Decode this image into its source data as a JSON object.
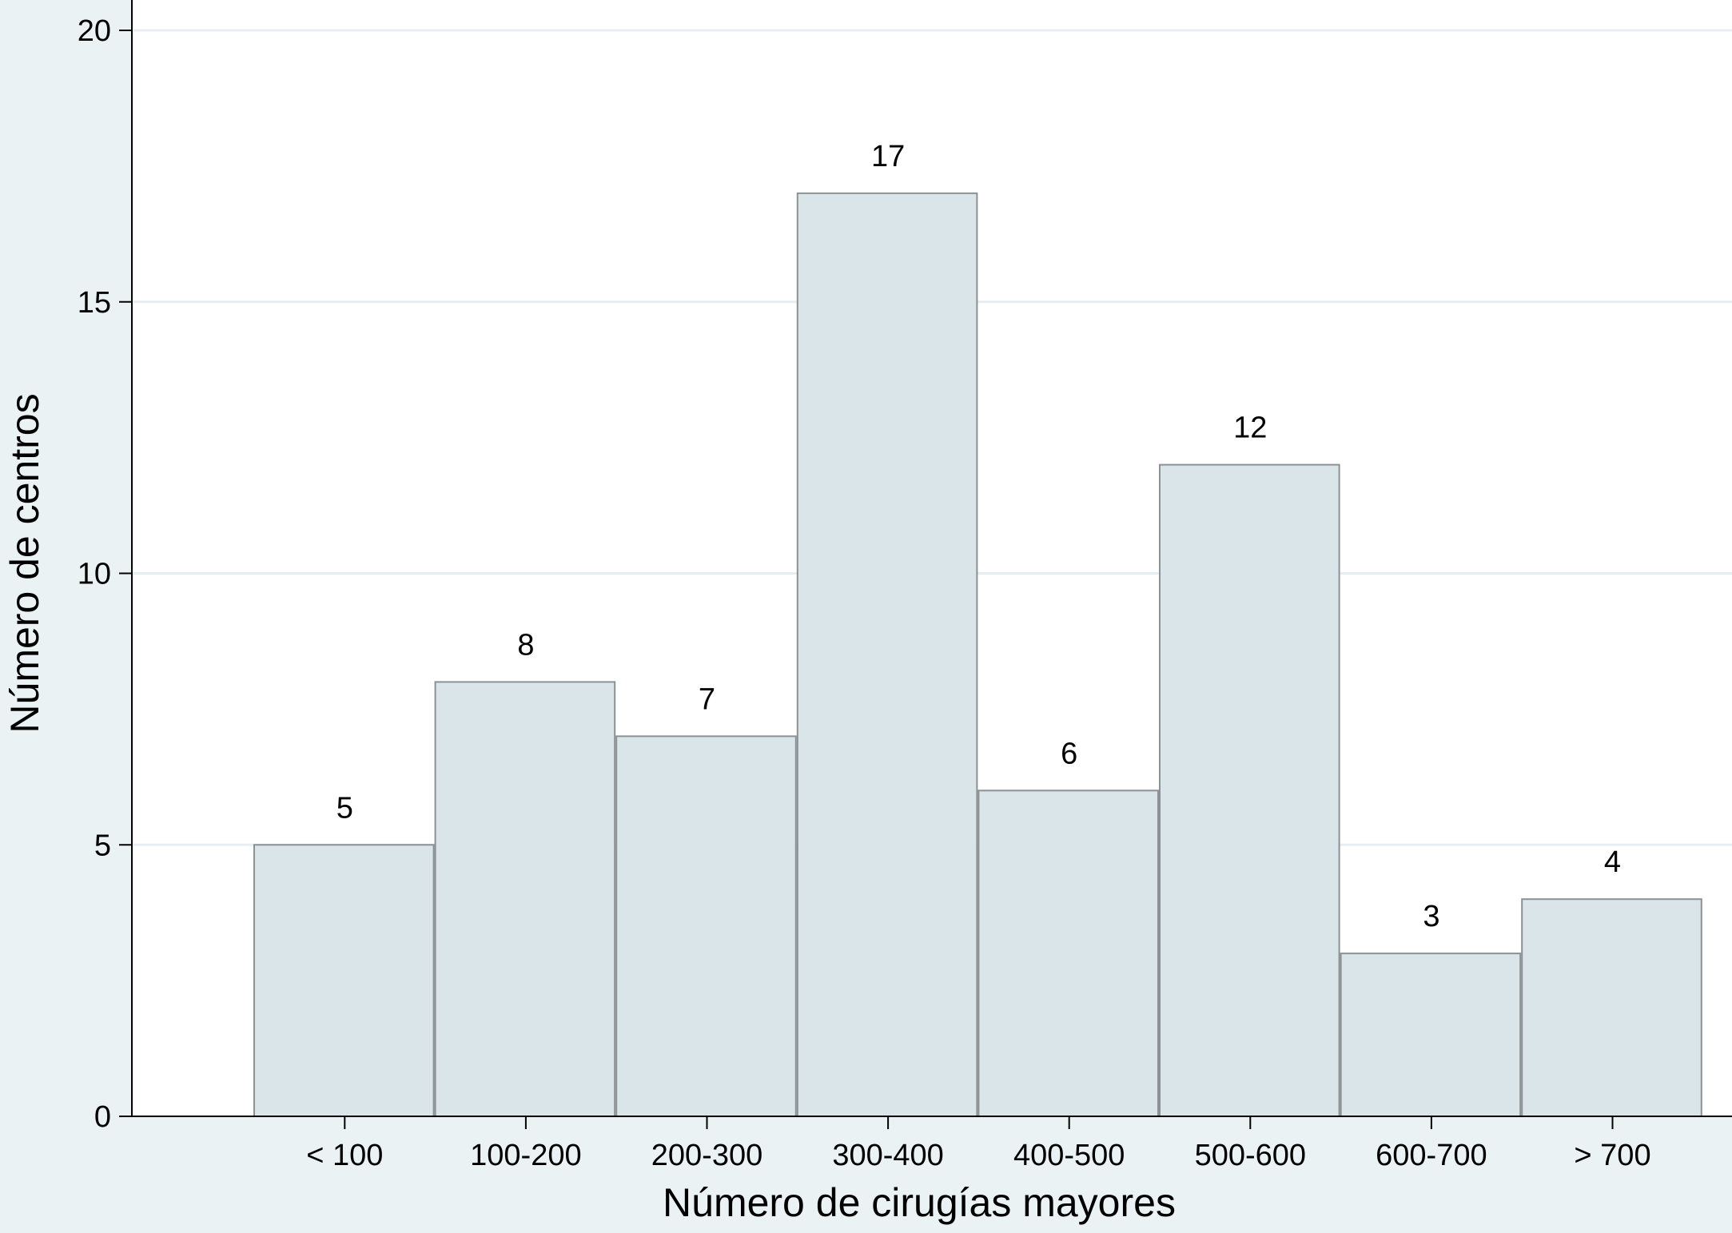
{
  "chart_data": {
    "type": "bar",
    "categories": [
      "< 100",
      "100-200",
      "200-300",
      "300-400",
      "400-500",
      "500-600",
      "600-700",
      "> 700"
    ],
    "values": [
      5,
      8,
      7,
      17,
      6,
      12,
      3,
      4
    ],
    "data_labels": [
      "5",
      "8",
      "7",
      "17",
      "6",
      "12",
      "3",
      "4"
    ],
    "xlabel": "Número de cirugías mayores",
    "ylabel": "Número de centros",
    "ylim": [
      0,
      20
    ],
    "yticks": [
      "0",
      "5",
      "10",
      "15",
      "20"
    ],
    "grid": true,
    "colors": {
      "background": "#eaf2f3",
      "plot_area": "#ffffff",
      "bar_fill": "#dae5ea",
      "bar_stroke": "#8c9193",
      "gridline": "#e6eef2",
      "axis": "#000000"
    }
  }
}
